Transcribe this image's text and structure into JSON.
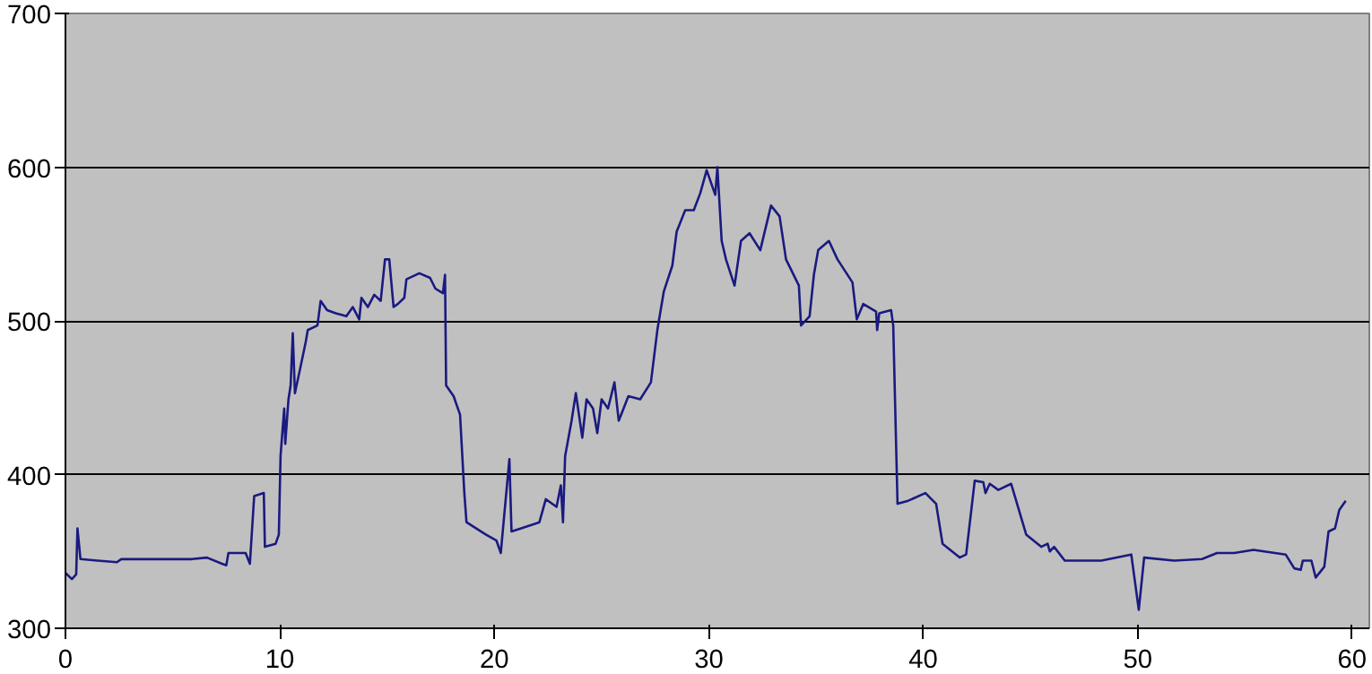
{
  "chart_data": {
    "type": "line",
    "xlim": [
      0,
      60.8
    ],
    "ylim": [
      300,
      700
    ],
    "xticks": [
      0,
      10,
      20,
      30,
      40,
      50,
      60
    ],
    "yticks": [
      300,
      400,
      500,
      600,
      700
    ],
    "grid": "y",
    "marker": "none",
    "line_style": "solid",
    "series": [
      {
        "color": "#1a1a80",
        "x": [
          0,
          0.3,
          0.5,
          0.56,
          0.7,
          1.5,
          2.4,
          2.6,
          4.25,
          5.9,
          6.6,
          7.3,
          7.5,
          7.6,
          8.4,
          8.6,
          8.8,
          9.25,
          9.3,
          9.8,
          9.95,
          10.03,
          10.1,
          10.2,
          10.25,
          10.4,
          10.5,
          10.6,
          10.7,
          10.9,
          11.2,
          11.3,
          11.75,
          11.9,
          12.2,
          12.6,
          13.1,
          13.4,
          13.7,
          13.8,
          14.1,
          14.4,
          14.7,
          14.9,
          15.1,
          15.3,
          15.5,
          15.8,
          15.9,
          16.5,
          17.0,
          17.25,
          17.6,
          17.7,
          17.75,
          18.1,
          18.4,
          18.6,
          18.7,
          19.6,
          20.1,
          20.3,
          20.7,
          20.8,
          21.25,
          22.1,
          22.4,
          22.9,
          23.1,
          23.2,
          23.3,
          23.6,
          23.8,
          24.1,
          24.3,
          24.6,
          24.8,
          25.0,
          25.3,
          25.6,
          25.8,
          26.25,
          26.8,
          27.3,
          27.6,
          27.9,
          28.3,
          28.5,
          28.9,
          29.3,
          29.6,
          29.9,
          30.3,
          30.4,
          30.6,
          30.8,
          31.2,
          31.5,
          31.9,
          32.4,
          32.9,
          33.3,
          33.6,
          34.2,
          34.3,
          34.7,
          34.9,
          35.1,
          35.6,
          36.0,
          36.7,
          36.9,
          37.2,
          37.8,
          37.85,
          37.95,
          38.5,
          38.6,
          38.8,
          39.3,
          40.1,
          40.6,
          40.9,
          41.7,
          42.0,
          42.4,
          42.8,
          42.9,
          43.1,
          43.5,
          44.1,
          44.8,
          45.5,
          45.8,
          45.9,
          46.1,
          46.6,
          48.3,
          49.7,
          50.05,
          50.3,
          51.7,
          53.0,
          53.7,
          54.5,
          55.4,
          56.9,
          57.3,
          57.6,
          57.7,
          58.1,
          58.3,
          58.7,
          58.9,
          59.2,
          59.4,
          59.7
        ],
        "values": [
          336,
          332,
          335,
          365,
          345,
          344,
          343,
          345,
          345,
          345,
          346,
          342,
          341,
          349,
          349,
          342,
          386,
          388,
          353,
          355,
          361,
          412,
          425,
          443,
          420,
          449,
          458,
          492,
          453,
          466,
          486,
          494,
          497,
          513,
          507,
          505,
          503,
          509,
          501,
          515,
          509,
          517,
          513,
          540,
          540,
          509,
          511,
          515,
          527,
          531,
          528,
          521,
          518,
          530,
          458,
          451,
          439,
          388,
          369,
          361,
          357,
          349,
          410,
          363,
          365,
          369,
          384,
          379,
          393,
          369,
          412,
          435,
          453,
          424,
          449,
          443,
          427,
          449,
          443,
          460,
          435,
          451,
          449,
          460,
          494,
          519,
          536,
          558,
          572,
          572,
          583,
          598,
          582,
          600,
          552,
          540,
          523,
          552,
          557,
          546,
          575,
          568,
          540,
          523,
          497,
          503,
          530,
          546,
          552,
          540,
          525,
          501,
          511,
          506,
          494,
          505,
          507,
          497,
          381,
          383,
          388,
          381,
          355,
          346,
          348,
          396,
          395,
          388,
          394,
          390,
          394,
          361,
          353,
          355,
          350,
          353,
          344,
          344,
          348,
          312,
          346,
          344,
          345,
          349,
          349,
          351,
          348,
          339,
          338,
          344,
          344,
          333,
          340,
          363,
          365,
          377,
          383
        ]
      }
    ]
  }
}
